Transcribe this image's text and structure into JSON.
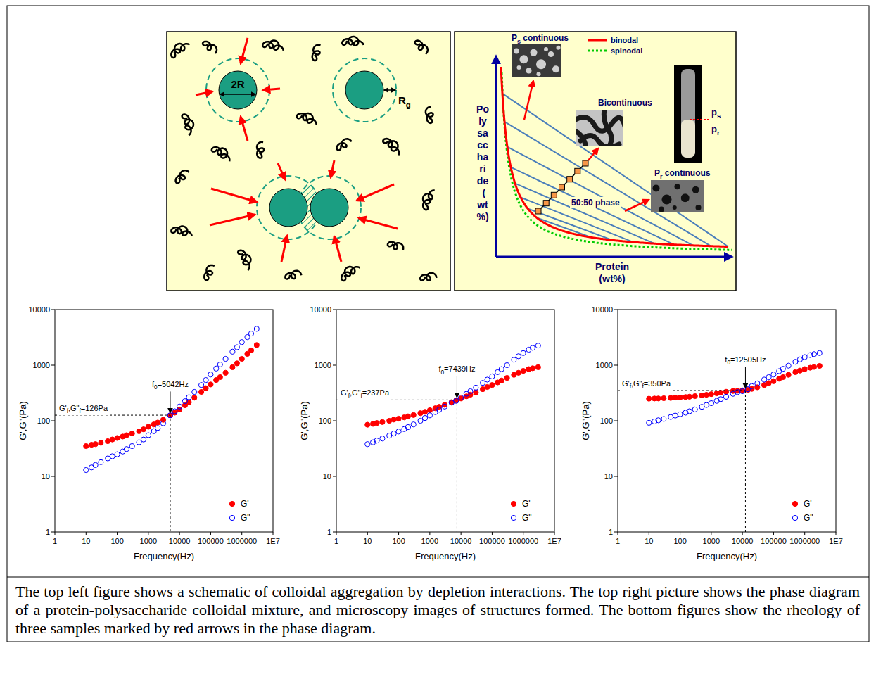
{
  "schematic": {
    "diameter_label": "2R",
    "depletion_label": [
      "R",
      "g"
    ]
  },
  "phase_diagram": {
    "y_label": "Polysaccharide (wt%)",
    "x_label": "Protein (wt%)",
    "legend": [
      {
        "name": "binodal",
        "color": "#ff0000",
        "line_style": "solid"
      },
      {
        "name": "spinodal",
        "color": "#00cc00",
        "line_style": "dotted"
      }
    ],
    "regions": [
      {
        "label": [
          "P",
          "s",
          " continuous"
        ]
      },
      {
        "label": [
          "Bicontinuous"
        ]
      },
      {
        "label": [
          "P",
          "r",
          " continuous"
        ]
      }
    ],
    "midline_label": "50:50 phase",
    "tube_labels": [
      [
        "p",
        "s"
      ],
      [
        "p",
        "r"
      ]
    ]
  },
  "chart_data": [
    {
      "type": "scatter",
      "x": [
        10,
        15,
        20,
        30,
        50,
        70,
        100,
        150,
        200,
        300,
        500,
        700,
        1000,
        1500,
        2000,
        3000,
        5000,
        7000,
        10000,
        15000,
        20000,
        30000,
        50000,
        70000,
        100000,
        150000,
        200000,
        300000,
        500000,
        700000,
        1000000,
        1500000,
        2000000,
        3000000
      ],
      "series": [
        {
          "name": "G'",
          "color": "#ff0000",
          "marker": "filled-circle",
          "values": [
            35,
            37,
            38,
            40,
            43,
            46,
            49,
            52,
            55,
            59,
            65,
            70,
            78,
            86,
            93,
            104,
            125,
            140,
            160,
            190,
            215,
            260,
            330,
            385,
            450,
            540,
            610,
            730,
            920,
            1080,
            1300,
            1600,
            1850,
            2300
          ]
        },
        {
          "name": "G\"",
          "color": "#0000ff",
          "marker": "open-circle",
          "values": [
            13,
            14.5,
            16,
            18,
            21,
            23,
            25,
            28,
            31,
            35,
            41,
            46,
            55,
            65,
            74,
            90,
            125,
            148,
            180,
            225,
            265,
            330,
            440,
            540,
            680,
            870,
            1030,
            1300,
            1750,
            2100,
            2600,
            3200,
            3700,
            4500
          ]
        }
      ],
      "xlabel": "Frequency(Hz)",
      "ylabel": "G',G\"(Pa)",
      "xlim": [
        1,
        10000000
      ],
      "ylim": [
        1,
        10000
      ],
      "xticks": [
        1,
        10,
        100,
        1000,
        10000,
        100000,
        1000000,
        {
          "value": 10000000,
          "label": "1E7"
        }
      ],
      "yticks": [
        1,
        10,
        100,
        1000,
        10000
      ],
      "log": true,
      "legend": "lower right",
      "crossover": {
        "x": 5042,
        "y": 126,
        "x_label": [
          "f",
          "0",
          "=5042Hz"
        ],
        "y_label": [
          "G'",
          "f",
          ",G\"",
          "f",
          "=126Pa"
        ]
      }
    },
    {
      "type": "scatter",
      "x": [
        10,
        15,
        20,
        30,
        50,
        70,
        100,
        150,
        200,
        300,
        500,
        700,
        1000,
        1500,
        2000,
        3000,
        5000,
        7000,
        10000,
        15000,
        20000,
        30000,
        50000,
        70000,
        100000,
        150000,
        200000,
        300000,
        500000,
        700000,
        1000000,
        1500000,
        2000000,
        3000000
      ],
      "series": [
        {
          "name": "G'",
          "color": "#ff0000",
          "marker": "filled-circle",
          "values": [
            85,
            88,
            91,
            95,
            100,
            105,
            109,
            115,
            120,
            127,
            137,
            145,
            155,
            168,
            178,
            193,
            215,
            233,
            252,
            275,
            295,
            325,
            370,
            405,
            440,
            490,
            530,
            590,
            670,
            730,
            790,
            850,
            880,
            920
          ]
        },
        {
          "name": "G\"",
          "color": "#0000ff",
          "marker": "open-circle",
          "values": [
            38,
            41,
            44,
            48,
            54,
            59,
            64,
            71,
            77,
            86,
            100,
            112,
            125,
            143,
            158,
            180,
            212,
            228,
            262,
            305,
            340,
            395,
            480,
            550,
            630,
            750,
            850,
            1000,
            1250,
            1450,
            1650,
            1900,
            2050,
            2250
          ]
        }
      ],
      "xlabel": "Frequency(Hz)",
      "ylabel": "G',G\"(Pa)",
      "xlim": [
        1,
        10000000
      ],
      "ylim": [
        1,
        10000
      ],
      "xticks": [
        1,
        10,
        100,
        1000,
        10000,
        100000,
        1000000,
        {
          "value": 10000000,
          "label": "1E7"
        }
      ],
      "yticks": [
        1,
        10,
        100,
        1000,
        10000
      ],
      "log": true,
      "legend": "lower right",
      "crossover": {
        "x": 7439,
        "y": 237,
        "x_label": [
          "f",
          "0",
          "=7439Hz"
        ],
        "y_label": [
          "G'",
          "f",
          ",G\"",
          "f",
          "=237Pa"
        ]
      }
    },
    {
      "type": "scatter",
      "x": [
        10,
        15,
        20,
        30,
        50,
        70,
        100,
        150,
        200,
        300,
        500,
        700,
        1000,
        1500,
        2000,
        3000,
        5000,
        7000,
        10000,
        15000,
        20000,
        30000,
        50000,
        70000,
        100000,
        150000,
        200000,
        300000,
        500000,
        700000,
        1000000,
        1500000,
        2000000,
        3000000
      ],
      "series": [
        {
          "name": "G'",
          "color": "#ff0000",
          "marker": "filled-circle",
          "values": [
            250,
            251,
            252,
            254,
            257,
            260,
            263,
            267,
            271,
            277,
            286,
            293,
            301,
            312,
            320,
            332,
            343,
            347,
            352,
            358,
            375,
            400,
            440,
            475,
            515,
            570,
            610,
            670,
            750,
            800,
            850,
            900,
            930,
            970
          ]
        },
        {
          "name": "G\"",
          "color": "#0000ff",
          "marker": "open-circle",
          "values": [
            92,
            97,
            102,
            108,
            117,
            124,
            131,
            140,
            148,
            160,
            178,
            192,
            207,
            228,
            245,
            270,
            305,
            328,
            340,
            370,
            420,
            470,
            550,
            610,
            680,
            780,
            860,
            980,
            1150,
            1270,
            1400,
            1520,
            1580,
            1650
          ]
        }
      ],
      "xlabel": "Frequency(Hz)",
      "ylabel": "G',G\"(Pa)",
      "xlim": [
        1,
        10000000
      ],
      "ylim": [
        1,
        10000
      ],
      "xticks": [
        1,
        10,
        100,
        1000,
        10000,
        100000,
        1000000,
        {
          "value": 10000000,
          "label": "1E7"
        }
      ],
      "yticks": [
        1,
        10,
        100,
        1000,
        10000
      ],
      "log": true,
      "legend": "lower right",
      "crossover": {
        "x": 12505,
        "y": 350,
        "x_label": [
          "f",
          "0",
          "=12505Hz"
        ],
        "y_label": [
          "G'",
          "f",
          ",G\"",
          "f",
          "=350Pa"
        ]
      }
    }
  ],
  "caption": "The top left figure shows a schematic of colloidal aggregation by depletion interactions. The top right picture shows the phase diagram of a protein-polysaccharide colloidal mixture, and microscopy images of structures formed. The bottom figures show the rheology of three samples marked by red arrows in the phase diagram."
}
